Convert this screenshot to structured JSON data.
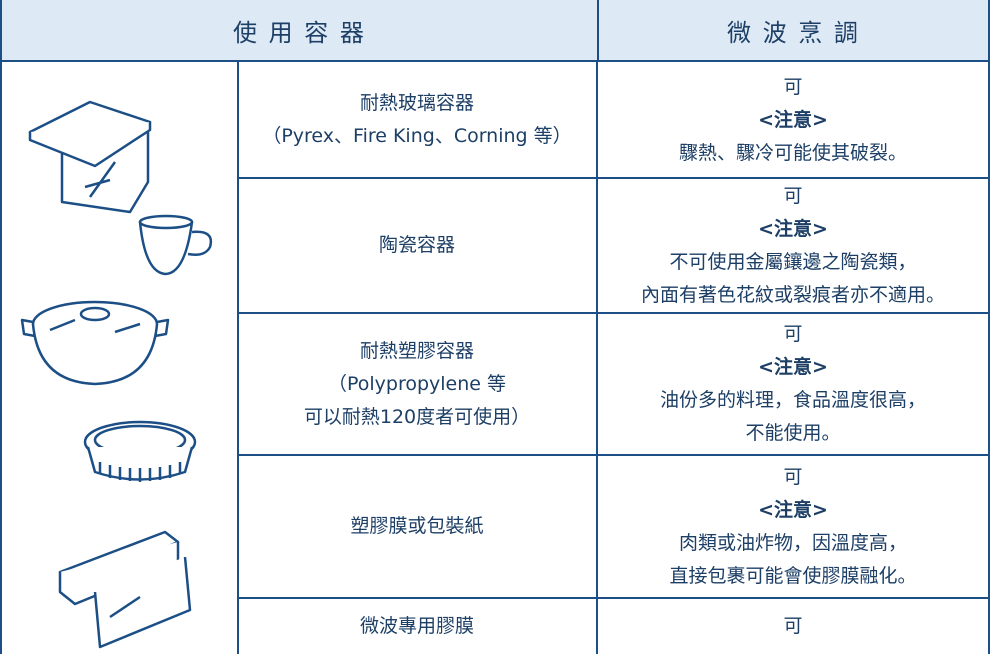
{
  "header": [
    "使 用 容 器",
    "微 波 烹 調"
  ],
  "rows": [
    {
      "container": [
        "耐熱玻璃容器",
        "（Pyrex、Fire King、Corning 等）"
      ],
      "microwave": [
        "可",
        "<注意>",
        "驟熱、驟冷可能使其破裂。"
      ]
    },
    {
      "container": [
        "陶瓷容器"
      ],
      "microwave": [
        "可",
        "<注意>",
        "不可使用金屬鑲邊之陶瓷類，",
        "內面有著色花紋或裂痕者亦不適用。"
      ]
    },
    {
      "container": [
        "耐熱塑膠容器",
        "（Polypropylene 等",
        "可以耐熱120度者可使用）"
      ],
      "microwave": [
        "可",
        "<注意>",
        "油份多的料理，食品溫度很高，",
        "不能使用。"
      ]
    },
    {
      "container": [
        "塑膠膜或包裝紙"
      ],
      "microwave": [
        "可",
        "<注意>",
        "肉類或油炸物，因溫度高，",
        "直接包裹可能會使膠膜融化。"
      ]
    },
    {
      "container": [
        "微波專用膠膜"
      ],
      "microwave": [
        "可"
      ]
    }
  ]
}
